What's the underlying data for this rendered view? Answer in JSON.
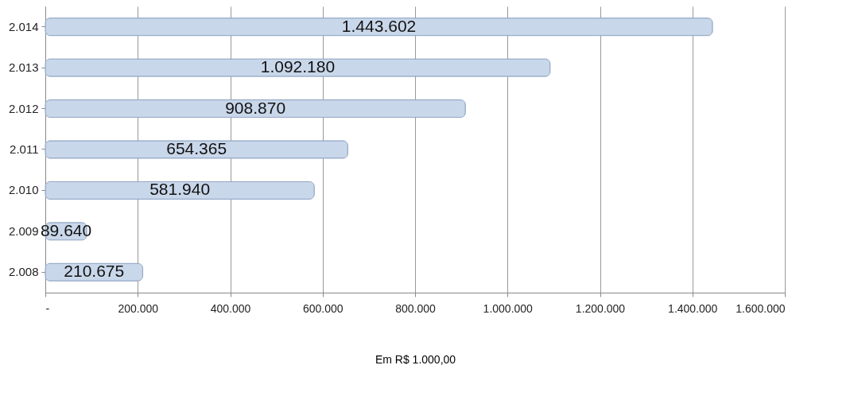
{
  "chart_data": {
    "type": "bar",
    "orientation": "horizontal",
    "xlabel": "Em R$ 1.000,00",
    "categories": [
      "2.014",
      "2.013",
      "2.012",
      "2.011",
      "2.010",
      "2.009",
      "2.008"
    ],
    "values": [
      1443602,
      1092180,
      908870,
      654365,
      581940,
      89640,
      210675
    ],
    "value_labels": [
      "1.443.602",
      "1.092.180",
      "908.870",
      "654.365",
      "581.940",
      "89.640",
      "210.675"
    ],
    "color": "#c9d7ea",
    "xlim": [
      0,
      1600000
    ],
    "xticks": [
      {
        "value": 0,
        "label": "-"
      },
      {
        "value": 200000,
        "label": "200.000"
      },
      {
        "value": 400000,
        "label": "400.000"
      },
      {
        "value": 600000,
        "label": "600.000"
      },
      {
        "value": 800000,
        "label": "800.000"
      },
      {
        "value": 1000000,
        "label": "1.000.000"
      },
      {
        "value": 1200000,
        "label": "1.200.000"
      },
      {
        "value": 1400000,
        "label": "1.400.000"
      },
      {
        "value": 1600000,
        "label": "1.600.000"
      }
    ],
    "grid": "x"
  }
}
